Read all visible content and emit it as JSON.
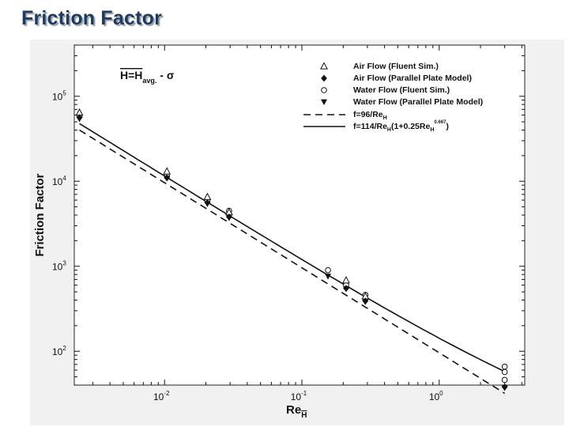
{
  "page": {
    "title": "Friction Factor"
  },
  "chart_data": {
    "type": "scatter",
    "x_scale": "log",
    "y_scale": "log",
    "xlabel": "Re",
    "xlabel_sub": "H",
    "ylabel": "Friction Factor",
    "xlim": [
      0.0022,
      4.2
    ],
    "ylim": [
      40,
      400000
    ],
    "x_ticks": [
      {
        "value": 0.01,
        "base": "10",
        "exp": "-2"
      },
      {
        "value": 0.1,
        "base": "10",
        "exp": "-1"
      },
      {
        "value": 1,
        "base": "10",
        "exp": "0"
      }
    ],
    "y_ticks": [
      {
        "value": 100,
        "base": "10",
        "exp": "2"
      },
      {
        "value": 1000,
        "base": "10",
        "exp": "3"
      },
      {
        "value": 10000,
        "base": "10",
        "exp": "4"
      },
      {
        "value": 100000,
        "base": "10",
        "exp": "5"
      }
    ],
    "grid": false,
    "annotation": {
      "main": "H=H",
      "sub": "avg.",
      "suffix": " - σ"
    },
    "legend_position": "top-right",
    "series": [
      {
        "name": "Air Flow (Fluent Sim.)",
        "marker": "triangle-open",
        "points": [
          [
            0.0024,
            64000
          ],
          [
            0.0104,
            13000
          ],
          [
            0.0205,
            6500
          ],
          [
            0.0295,
            4300
          ],
          [
            0.21,
            680
          ],
          [
            0.29,
            440
          ]
        ]
      },
      {
        "name": "Air Flow (Parallel Plate Model)",
        "marker": "diamond-filled",
        "points": [
          [
            0.0024,
            56000
          ],
          [
            0.0104,
            11000
          ],
          [
            0.0205,
            5600
          ],
          [
            0.0295,
            3800
          ],
          [
            0.21,
            550
          ],
          [
            0.29,
            390
          ],
          [
            3.0,
            38
          ]
        ]
      },
      {
        "name": "Water Flow (Fluent Sim.)",
        "marker": "circle-open",
        "points": [
          [
            0.0024,
            58000
          ],
          [
            0.0104,
            11500
          ],
          [
            0.0205,
            5900
          ],
          [
            0.0295,
            4500
          ],
          [
            0.155,
            900
          ],
          [
            0.21,
            600
          ],
          [
            0.29,
            460
          ],
          [
            3.0,
            66
          ],
          [
            3.0,
            57
          ],
          [
            3.0,
            46
          ]
        ]
      },
      {
        "name": "Water Flow (Parallel Plate Model)",
        "marker": "triangle-down-filled",
        "points": [
          [
            0.0024,
            54000
          ],
          [
            0.0104,
            10800
          ],
          [
            0.0205,
            5400
          ],
          [
            0.0295,
            3700
          ],
          [
            0.155,
            760
          ],
          [
            0.21,
            540
          ],
          [
            0.29,
            380
          ],
          [
            3.0,
            37
          ]
        ]
      },
      {
        "name": "f=96/Re",
        "name_sub": "H",
        "line": "dashed",
        "formula": "96/x"
      },
      {
        "name": "f=114/Re",
        "name_sub": "H",
        "name_tail": "(1+0.25Re",
        "name_tail_sub": "H",
        "name_tail_sup": "0.667",
        "name_end": ")",
        "line": "solid",
        "formula": "114/x*(1+0.25*x^0.667)"
      }
    ]
  },
  "style": {
    "title_color": "#1f3a5f",
    "panel_bg": "#f1f1f1",
    "plot_bg": "#ffffff",
    "ink": "#111111"
  }
}
